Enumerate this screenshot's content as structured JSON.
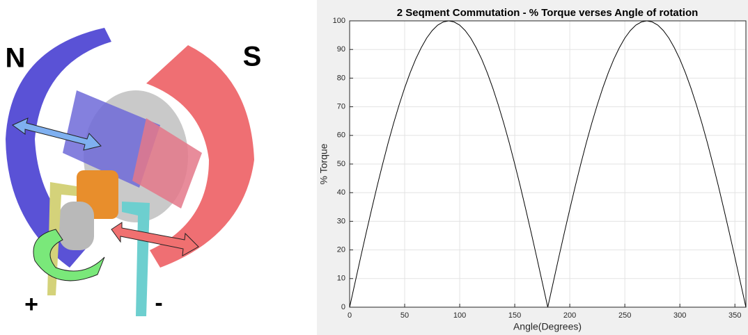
{
  "illustration": {
    "north_label": "N",
    "south_label": "S",
    "plus_label": "+",
    "minus_label": "-"
  },
  "chart_data": {
    "type": "line",
    "title": "2 Seqment Commutation - % Torque verses Angle of rotation",
    "x_label": "Angle(Degrees)",
    "y_label": "% Torque",
    "x": [
      0,
      5,
      10,
      15,
      20,
      25,
      30,
      35,
      40,
      45,
      50,
      55,
      60,
      65,
      70,
      75,
      80,
      85,
      90,
      95,
      100,
      105,
      110,
      115,
      120,
      125,
      130,
      135,
      140,
      145,
      150,
      155,
      160,
      165,
      170,
      175,
      180,
      185,
      190,
      195,
      200,
      205,
      210,
      215,
      220,
      225,
      230,
      235,
      240,
      245,
      250,
      255,
      260,
      265,
      270,
      275,
      280,
      285,
      290,
      295,
      300,
      305,
      310,
      315,
      320,
      325,
      330,
      335,
      340,
      345,
      350,
      355,
      360
    ],
    "series": [
      {
        "name": "% Torque",
        "color": "#000000",
        "values": [
          0,
          8.7,
          17.4,
          25.9,
          34.2,
          42.3,
          50,
          57.4,
          64.3,
          70.7,
          76.6,
          81.9,
          86.6,
          90.6,
          94,
          96.6,
          98.5,
          99.6,
          100,
          99.6,
          98.5,
          96.6,
          94,
          90.6,
          86.6,
          81.9,
          76.6,
          70.7,
          64.3,
          57.4,
          50,
          42.3,
          34.2,
          25.9,
          17.4,
          8.7,
          0,
          8.7,
          17.4,
          25.9,
          34.2,
          42.3,
          50,
          57.4,
          64.3,
          70.7,
          76.6,
          81.9,
          86.6,
          90.6,
          94,
          96.6,
          98.5,
          99.6,
          100,
          99.6,
          98.5,
          96.6,
          94,
          90.6,
          86.6,
          81.9,
          76.6,
          70.7,
          64.3,
          57.4,
          50,
          42.3,
          34.2,
          25.9,
          17.4,
          8.7,
          0
        ]
      }
    ],
    "xlim": [
      0,
      360
    ],
    "xticks": [
      0,
      50,
      100,
      150,
      200,
      250,
      300,
      350
    ],
    "ylim": [
      0,
      100
    ],
    "yticks": [
      0,
      10,
      20,
      30,
      40,
      50,
      60,
      70,
      80,
      90,
      100
    ],
    "grid": true
  }
}
